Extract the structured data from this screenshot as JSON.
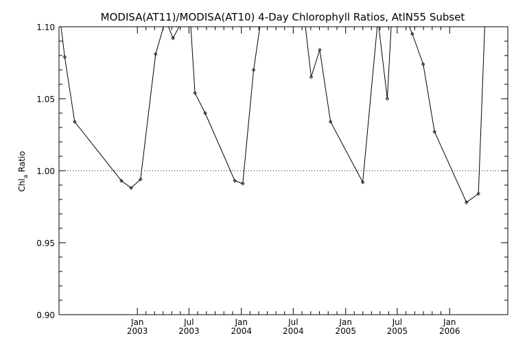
{
  "chart_data": {
    "type": "line",
    "title": "MODISA(AT11)/MODISA(AT10) 4-Day Chlorophyll Ratios, AtlN55 Subset",
    "ylabel": "Chl",
    "ylabel_subscript": "a",
    "ylabel_suffix": " Ratio",
    "xlabel": "",
    "xlim": [
      "2002-04-01",
      "2006-07-24"
    ],
    "ylim": [
      0.9,
      1.1
    ],
    "y_ticks": [
      "0.90",
      "0.95",
      "1.00",
      "1.05",
      "1.10"
    ],
    "x_ticks": [
      {
        "date": "2003-01-01",
        "month": "Jan",
        "year": "2003"
      },
      {
        "date": "2003-07-01",
        "month": "Jul",
        "year": "2003"
      },
      {
        "date": "2004-01-01",
        "month": "Jan",
        "year": "2004"
      },
      {
        "date": "2004-07-01",
        "month": "Jul",
        "year": "2004"
      },
      {
        "date": "2005-01-01",
        "month": "Jan",
        "year": "2005"
      },
      {
        "date": "2005-07-01",
        "month": "Jul",
        "year": "2005"
      },
      {
        "date": "2006-01-01",
        "month": "Jan",
        "year": "2006"
      }
    ],
    "reference_line": {
      "y": 1.0,
      "style": "dotted"
    },
    "grid": false,
    "series": [
      {
        "points": [
          {
            "x": "2002-04-05",
            "y": 1.105
          },
          {
            "x": "2002-04-21",
            "y": 1.079
          },
          {
            "x": "2002-05-26",
            "y": 1.034
          },
          {
            "x": "2002-11-06",
            "y": 0.993
          },
          {
            "x": "2002-12-10",
            "y": 0.988
          },
          {
            "x": "2003-01-12",
            "y": 0.994
          },
          {
            "x": "2003-03-06",
            "y": 1.081
          },
          {
            "x": "2003-04-10",
            "y": 1.105
          },
          {
            "x": "2003-05-06",
            "y": 1.092
          },
          {
            "x": "2003-06-10",
            "y": 1.105
          },
          {
            "x": "2003-07-06",
            "y": 1.105
          },
          {
            "x": "2003-07-22",
            "y": 1.054
          },
          {
            "x": "2003-08-27",
            "y": 1.04
          },
          {
            "x": "2003-12-09",
            "y": 0.993
          },
          {
            "x": "2004-01-06",
            "y": 0.991
          },
          {
            "x": "2004-02-13",
            "y": 1.07
          },
          {
            "x": "2004-03-10",
            "y": 1.105
          },
          {
            "x": "2004-08-10",
            "y": 1.105
          },
          {
            "x": "2004-09-02",
            "y": 1.065
          },
          {
            "x": "2004-10-02",
            "y": 1.084
          },
          {
            "x": "2004-11-09",
            "y": 1.034
          },
          {
            "x": "2005-03-02",
            "y": 0.992
          },
          {
            "x": "2005-04-24",
            "y": 1.105
          },
          {
            "x": "2005-05-27",
            "y": 1.05
          },
          {
            "x": "2005-06-11",
            "y": 1.105
          },
          {
            "x": "2005-08-02",
            "y": 1.105
          },
          {
            "x": "2005-08-23",
            "y": 1.095
          },
          {
            "x": "2005-09-30",
            "y": 1.074
          },
          {
            "x": "2005-11-09",
            "y": 1.027
          },
          {
            "x": "2006-03-01",
            "y": 0.978
          },
          {
            "x": "2006-04-12",
            "y": 0.984
          },
          {
            "x": "2006-05-05",
            "y": 1.105
          }
        ]
      }
    ]
  }
}
